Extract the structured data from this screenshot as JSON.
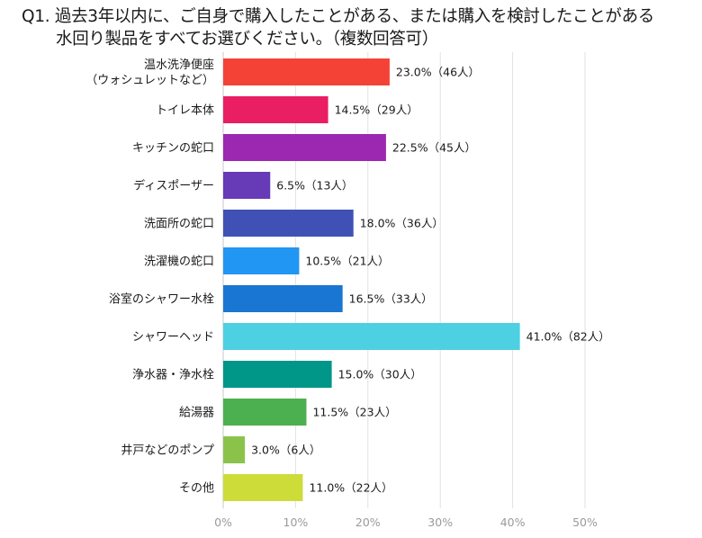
{
  "title": {
    "line1": "Q1. 過去3年以内に、ご自身で購入したことがある、または購入を検討したことがある",
    "line2": "水回り製品をすべてお選びください。（複数回答可）"
  },
  "chart_data": {
    "type": "bar",
    "orientation": "horizontal",
    "categories": [
      [
        "温水洗浄便座",
        "（ウォシュレットなど）"
      ],
      [
        "トイレ本体"
      ],
      [
        "キッチンの蛇口"
      ],
      [
        "ディスポーザー"
      ],
      [
        "洗面所の蛇口"
      ],
      [
        "洗濯機の蛇口"
      ],
      [
        "浴室のシャワー水栓"
      ],
      [
        "シャワーヘッド"
      ],
      [
        "浄水器・浄水栓"
      ],
      [
        "給湯器"
      ],
      [
        "井戸などのポンプ"
      ],
      [
        "その他"
      ]
    ],
    "values": [
      23.0,
      14.5,
      22.5,
      6.5,
      18.0,
      10.5,
      16.5,
      41.0,
      15.0,
      11.5,
      3.0,
      11.0
    ],
    "value_labels": [
      "23.0%（46人）",
      "14.5%（29人）",
      "22.5%（45人）",
      "6.5%（13人）",
      "18.0%（36人）",
      "10.5%（21人）",
      "16.5%（33人）",
      "41.0%（82人）",
      "15.0%（30人）",
      "11.5%（23人）",
      "3.0%（6人）",
      "11.0%（22人）"
    ],
    "colors": [
      "#f44336",
      "#e91e63",
      "#9c27b0",
      "#673ab7",
      "#3f51b5",
      "#2196f3",
      "#1976d2",
      "#4dd0e1",
      "#009688",
      "#4caf50",
      "#8bc34a",
      "#cddc39"
    ],
    "xlim": [
      0,
      50
    ],
    "xticks": [
      "0%",
      "10%",
      "20%",
      "30%",
      "40%",
      "50%"
    ],
    "xtick_values": [
      0,
      10,
      20,
      30,
      40,
      50
    ],
    "grid": true
  }
}
